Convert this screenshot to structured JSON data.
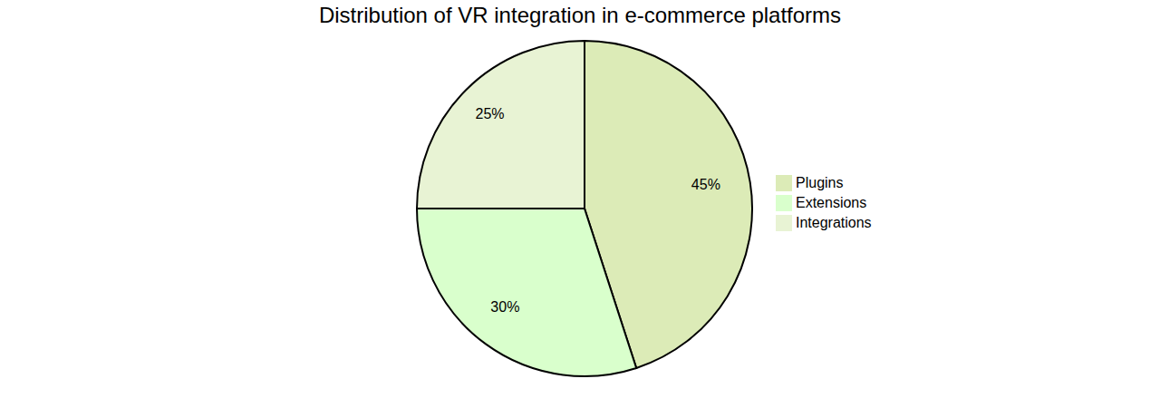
{
  "chart_data": {
    "type": "pie",
    "title": "Distribution of VR integration in e-commerce platforms",
    "categories": [
      "Plugins",
      "Extensions",
      "Integrations"
    ],
    "values": [
      45,
      30,
      25
    ],
    "value_labels": [
      "45%",
      "30%",
      "25%"
    ],
    "colors": [
      "#dcebb7",
      "#d9ffcc",
      "#e8f3d4"
    ],
    "data_labels": true,
    "legend": "right"
  }
}
